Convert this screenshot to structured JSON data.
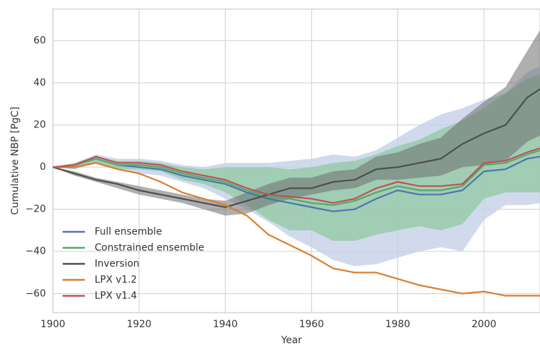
{
  "chart_data": {
    "type": "line",
    "xlabel": "Year",
    "ylabel": "Cumulative NBP [PgC]",
    "x": [
      1900,
      1905,
      1910,
      1915,
      1920,
      1925,
      1930,
      1935,
      1940,
      1945,
      1950,
      1955,
      1960,
      1965,
      1970,
      1975,
      1980,
      1985,
      1990,
      1995,
      2000,
      2005,
      2010,
      2013
    ],
    "xlim": [
      1900,
      2013
    ],
    "ylim": [
      -69,
      75
    ],
    "xticks": [
      1900,
      1920,
      1940,
      1960,
      1980,
      2000
    ],
    "yticks": [
      {
        "value": -60,
        "label": "−60"
      },
      {
        "value": -40,
        "label": "−40"
      },
      {
        "value": -20,
        "label": "−20"
      },
      0,
      20,
      40,
      60
    ],
    "grid": true,
    "legend": "lower left",
    "series": [
      {
        "name": "Full ensemble",
        "color": "#4c72b0",
        "band_color": "#c6d1e8",
        "values": [
          0,
          1,
          4,
          1,
          0,
          -1,
          -4,
          -6,
          -8,
          -12,
          -15,
          -17,
          -19,
          -21,
          -20,
          -15,
          -11,
          -13,
          -13,
          -11,
          -2,
          -1,
          4,
          5
        ],
        "lower": [
          0,
          -1,
          2,
          -1,
          -3,
          -4,
          -7,
          -10,
          -15,
          -20,
          -26,
          -33,
          -38,
          -44,
          -47,
          -46,
          -43,
          -40,
          -38,
          -40,
          -25,
          -18,
          -18,
          -17
        ],
        "upper": [
          0,
          2,
          6,
          4,
          4,
          3,
          1,
          0,
          2,
          2,
          2,
          3,
          4,
          6,
          5,
          8,
          14,
          20,
          25,
          28,
          32,
          35,
          45,
          48
        ]
      },
      {
        "name": "Constrained ensemble",
        "color": "#55a868",
        "band_color": "#93c9a5",
        "values": [
          0,
          1,
          4,
          1,
          1,
          0,
          -3,
          -5,
          -7,
          -11,
          -14,
          -15,
          -17,
          -18,
          -16,
          -12,
          -9,
          -11,
          -11,
          -9,
          1,
          2,
          6,
          8
        ],
        "lower": [
          0,
          -1,
          2,
          -1,
          -1,
          -2,
          -6,
          -8,
          -12,
          -18,
          -25,
          -30,
          -30,
          -35,
          -35,
          -32,
          -30,
          -28,
          -30,
          -27,
          -15,
          -12,
          -12,
          -12
        ],
        "upper": [
          0,
          2,
          5,
          3,
          3,
          2,
          0,
          -1,
          0,
          0,
          0,
          -1,
          0,
          2,
          3,
          6,
          10,
          13,
          18,
          22,
          28,
          35,
          42,
          44
        ]
      },
      {
        "name": "Inversion",
        "color": "#4d4d4d",
        "band_color": "#6e6e6e",
        "values": [
          0,
          -3,
          -6,
          -8,
          -11,
          -13,
          -15,
          -17,
          -19,
          -16,
          -13,
          -10,
          -10,
          -7,
          -6,
          -1,
          0,
          2,
          4,
          11,
          16,
          20,
          33,
          37
        ],
        "lower": [
          0,
          -4,
          -7,
          -10,
          -13,
          -15,
          -17,
          -20,
          -23,
          -22,
          -18,
          -15,
          -13,
          -11,
          -10,
          -6,
          -6,
          -5,
          -4,
          0,
          1,
          3,
          12,
          15
        ],
        "upper": [
          0,
          -2,
          -5,
          -7,
          -9,
          -11,
          -13,
          -15,
          -16,
          -12,
          -8,
          -5,
          -5,
          -2,
          -1,
          5,
          7,
          11,
          14,
          23,
          31,
          38,
          55,
          65
        ]
      },
      {
        "name": "LPX v1.2",
        "color": "#dd7a2a",
        "values": [
          0,
          0,
          2,
          -1,
          -3,
          -7,
          -12,
          -15,
          -18,
          -23,
          -32,
          -37,
          -42,
          -48,
          -50,
          -50,
          -53,
          -56,
          -58,
          -60,
          -59,
          -61,
          -61,
          -61
        ]
      },
      {
        "name": "LPX v1.4",
        "color": "#c44e52",
        "values": [
          0,
          1,
          5,
          2,
          2,
          1,
          -2,
          -4,
          -6,
          -10,
          -13,
          -14,
          -15,
          -17,
          -15,
          -10,
          -7,
          -9,
          -9,
          -8,
          2,
          3,
          7,
          9
        ]
      }
    ]
  }
}
